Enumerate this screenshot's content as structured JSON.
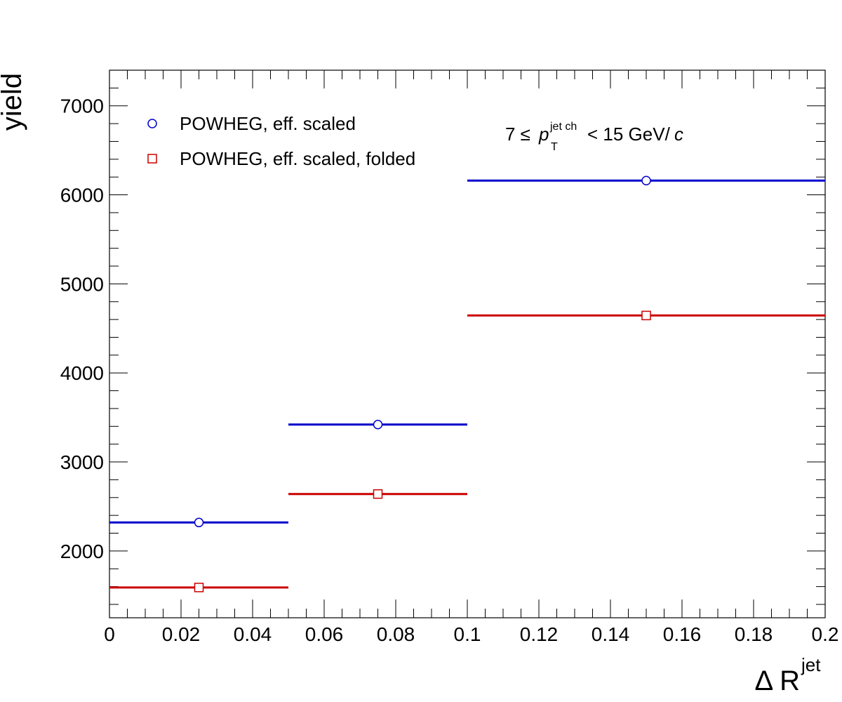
{
  "chart_data": {
    "type": "step",
    "title": "",
    "xlabel": "Δ R",
    "xlabel_superscript": "jet",
    "ylabel": "yield",
    "xlim": [
      0,
      0.2
    ],
    "ylim": [
      1250,
      7400
    ],
    "x_ticks": [
      0,
      0.02,
      0.04,
      0.06,
      0.08,
      0.1,
      0.12,
      0.14,
      0.16,
      0.18,
      0.2
    ],
    "x_tick_labels": [
      "0",
      "0.02",
      "0.04",
      "0.06",
      "0.08",
      "0.1",
      "0.12",
      "0.14",
      "0.16",
      "0.18",
      "0.2"
    ],
    "y_ticks": [
      2000,
      3000,
      4000,
      5000,
      6000,
      7000
    ],
    "y_tick_labels": [
      "2000",
      "3000",
      "4000",
      "5000",
      "6000",
      "7000"
    ],
    "bin_edges": [
      0,
      0.05,
      0.1,
      0.2
    ],
    "bin_centers": [
      0.025,
      0.075,
      0.15
    ],
    "series": [
      {
        "name": "POWHEG, eff. scaled",
        "marker": "open-circle",
        "color": "#0000cc",
        "values": [
          2320,
          3420,
          6160
        ]
      },
      {
        "name": "POWHEG, eff. scaled, folded",
        "marker": "open-square",
        "color": "#cc0000",
        "values": [
          1590,
          2640,
          4645
        ]
      }
    ],
    "annotation": {
      "prefix": "7 ≤",
      "symbol": "p",
      "superscript": "jet ch",
      "subscript": "T",
      "suffix": "< 15 GeV/",
      "suffix_italic": "c"
    },
    "legend_position": "top-left",
    "grid": false
  }
}
